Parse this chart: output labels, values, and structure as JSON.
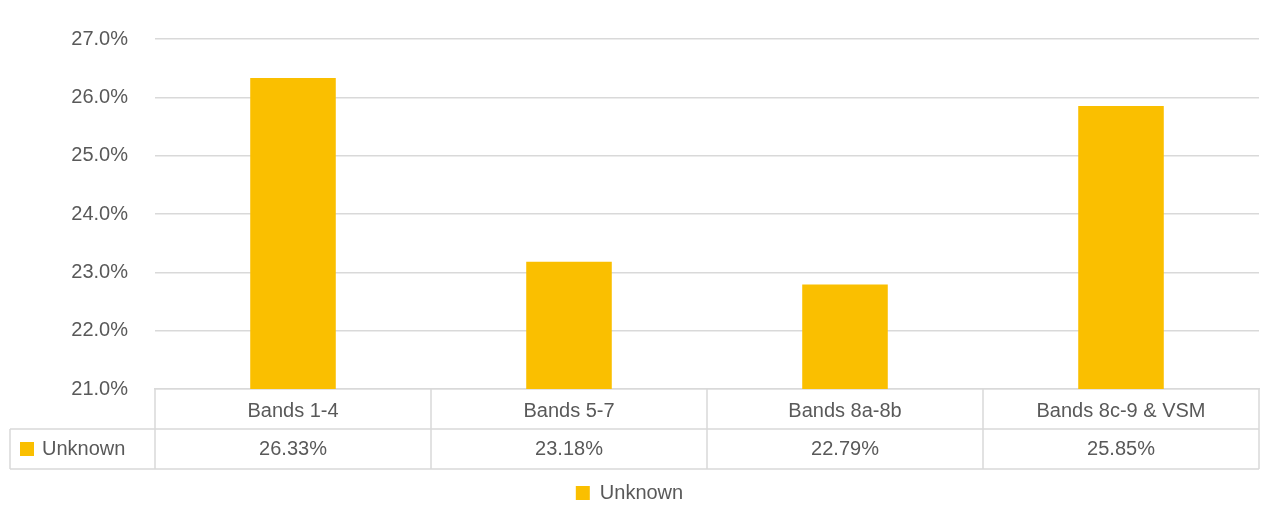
{
  "chart_data": {
    "type": "bar",
    "categories": [
      "Bands 1-4",
      "Bands 5-7",
      "Bands 8a-8b",
      "Bands 8c-9 & VSM"
    ],
    "series": [
      {
        "name": "Unknown",
        "color": "#fabf00",
        "values": [
          26.33,
          23.18,
          22.79,
          25.85
        ],
        "value_labels": [
          "26.33%",
          "23.18%",
          "22.79%",
          "25.85%"
        ]
      }
    ],
    "ylim": [
      21,
      27
    ],
    "yticks": [
      {
        "value": 21,
        "label": "21.0%"
      },
      {
        "value": 22,
        "label": "22.0%"
      },
      {
        "value": 23,
        "label": "23.0%"
      },
      {
        "value": 24,
        "label": "24.0%"
      },
      {
        "value": 25,
        "label": "25.0%"
      },
      {
        "value": 26,
        "label": "26.0%"
      },
      {
        "value": 27,
        "label": "27.0%"
      }
    ],
    "grid": "y",
    "legend": "bottom"
  }
}
